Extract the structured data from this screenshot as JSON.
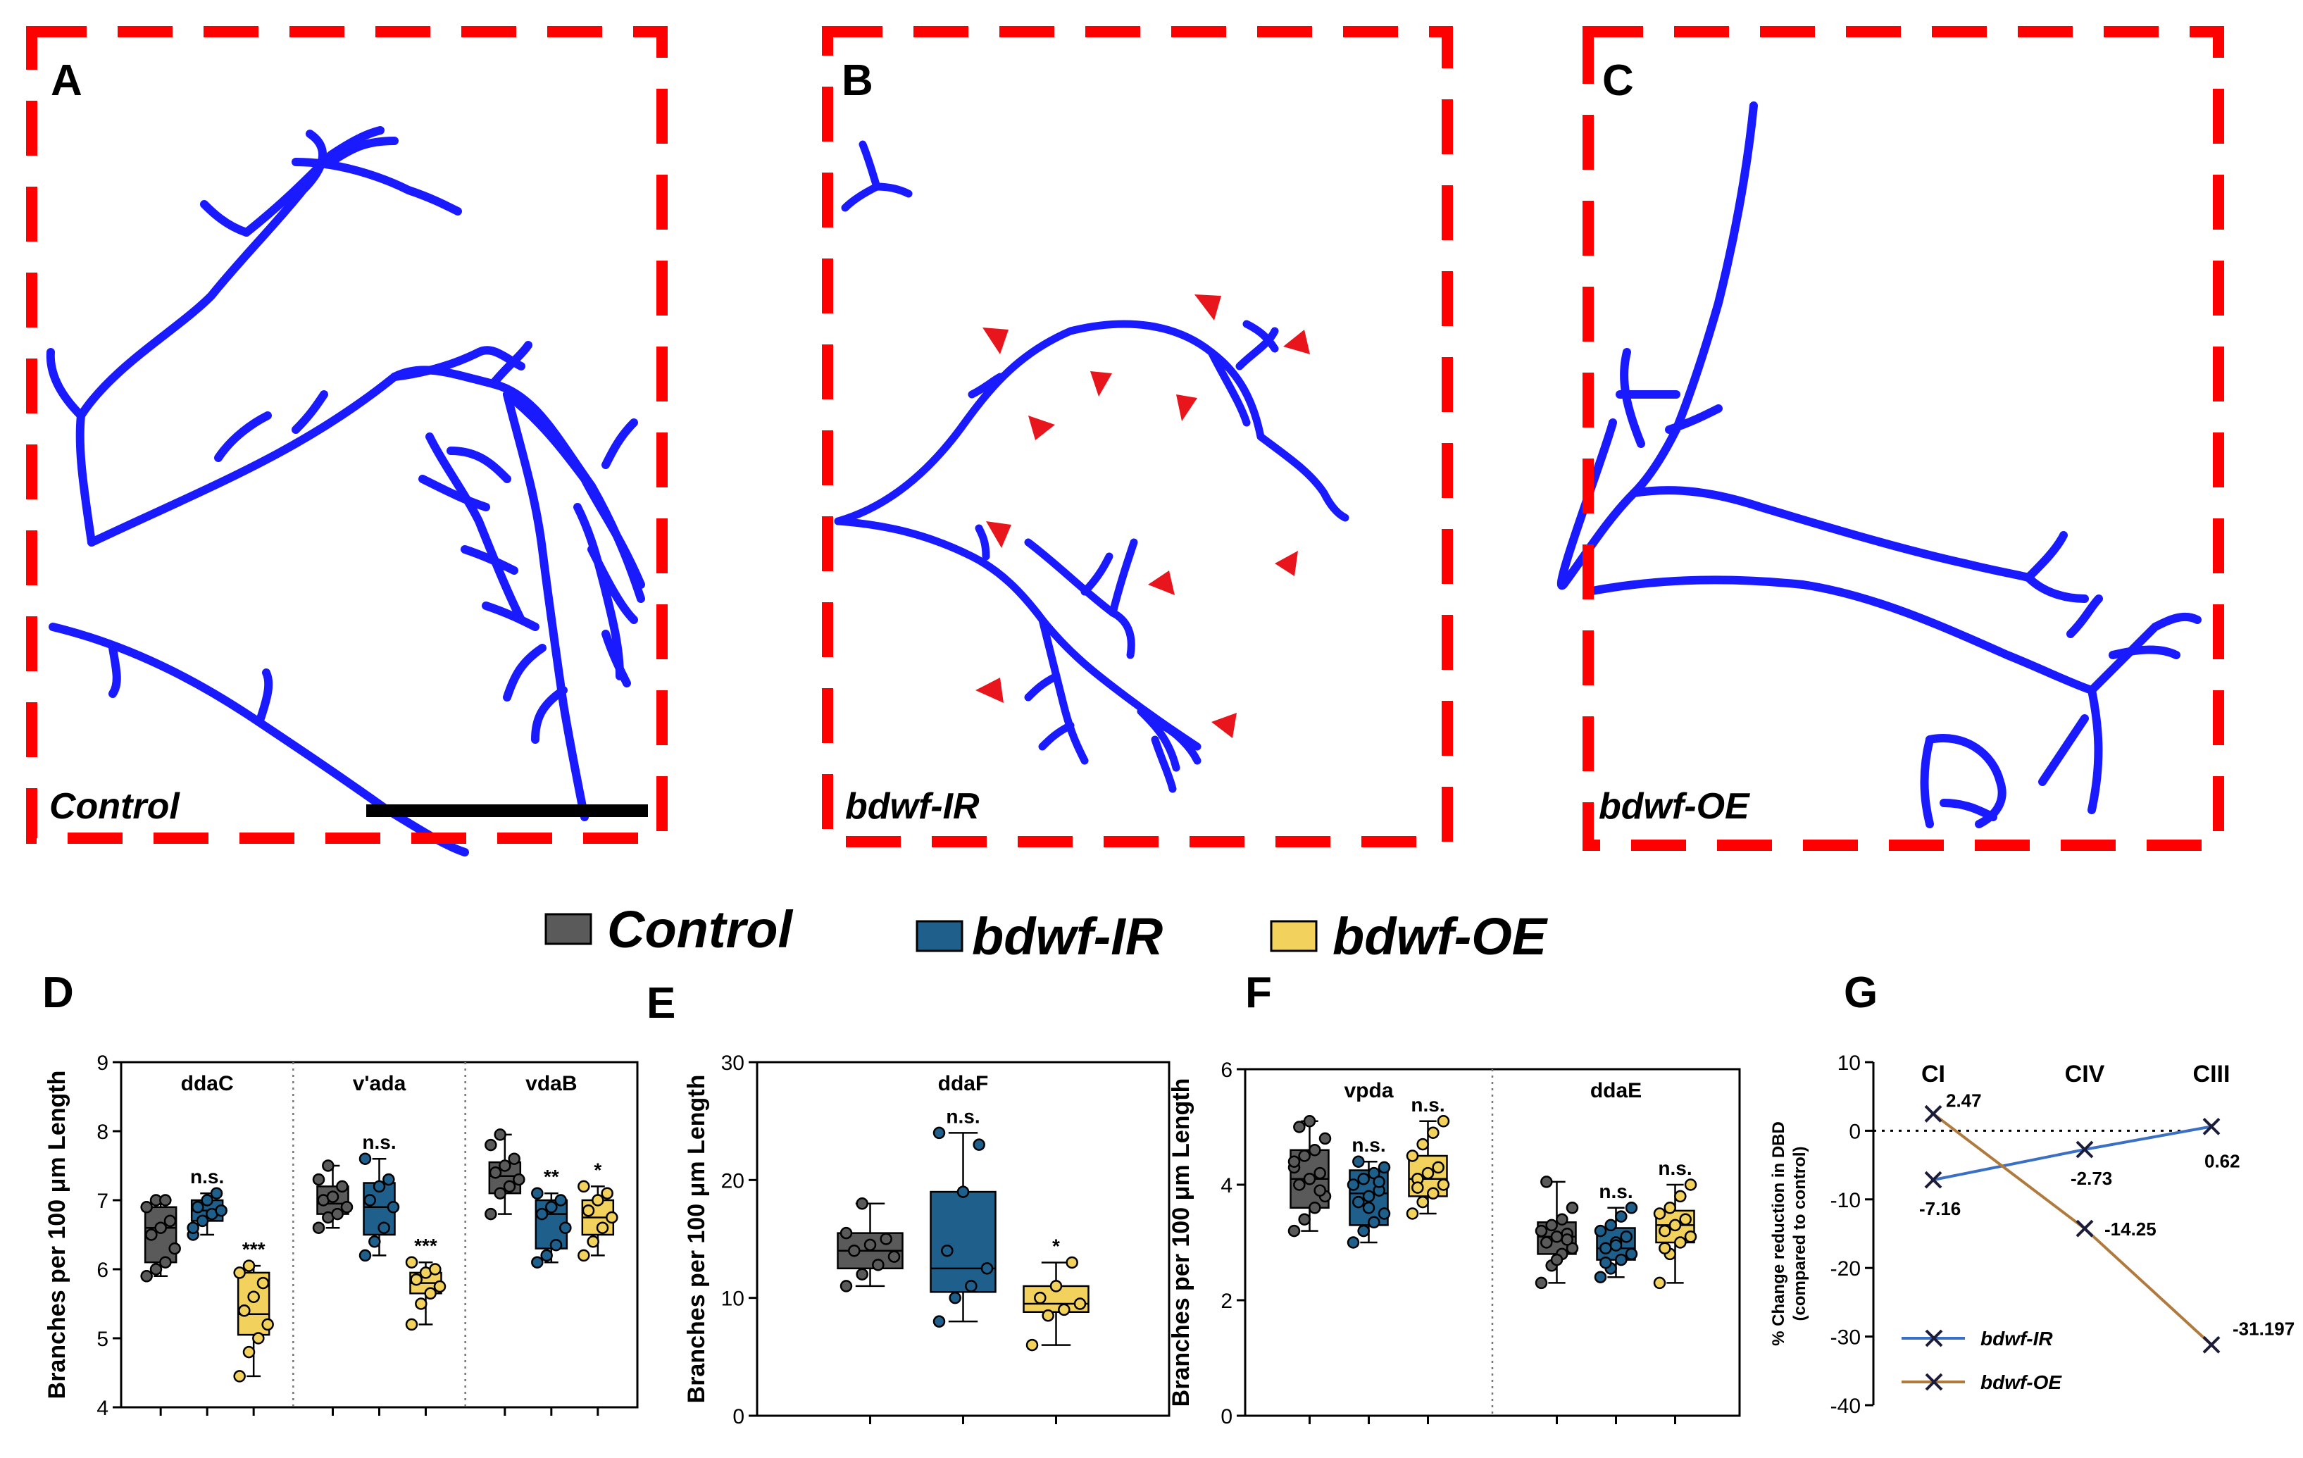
{
  "panels": {
    "A": {
      "label": "A",
      "genotype": "Control"
    },
    "B": {
      "label": "B",
      "genotype": "bdwf-IR"
    },
    "C": {
      "label": "C",
      "genotype": "bdwf-OE"
    }
  },
  "legend": [
    {
      "name": "Control",
      "color": "#5a5a5a"
    },
    {
      "name": "bdwf-IR",
      "color": "#1f5f8b"
    },
    {
      "name": "bdwf-OE",
      "color": "#f2d15c"
    }
  ],
  "colors": {
    "neuron": "#1a1aff",
    "frame": "#ff0000",
    "arrow": "#e8161c",
    "ir_line": "#3a6fc4",
    "oe_line": "#b07a3c"
  },
  "chart_data": [
    {
      "id": "D",
      "label": "D",
      "type": "box",
      "ylabel": "Branches per 100 μm Length",
      "ylim": [
        4,
        9
      ],
      "yticks": [
        "4",
        "5",
        "6",
        "7",
        "8",
        "9"
      ],
      "groups": [
        {
          "name": "ddaC",
          "boxes": [
            {
              "series": "Control",
              "min": 5.9,
              "q1": 6.1,
              "median": 6.6,
              "q3": 6.9,
              "max": 7.0,
              "sig": "",
              "points": [
                5.9,
                6.0,
                6.1,
                6.3,
                6.5,
                6.6,
                6.7,
                6.9,
                7.0,
                7.0
              ]
            },
            {
              "series": "bdwf-IR",
              "min": 6.5,
              "q1": 6.7,
              "median": 6.85,
              "q3": 7.0,
              "max": 7.1,
              "sig": "n.s.",
              "points": [
                6.5,
                6.7,
                6.8,
                6.85,
                6.9,
                7.0,
                7.1,
                6.6
              ]
            },
            {
              "series": "bdwf-OE",
              "min": 4.45,
              "q1": 5.05,
              "median": 5.35,
              "q3": 5.95,
              "max": 6.05,
              "sig": "***",
              "points": [
                4.45,
                4.8,
                5.0,
                5.2,
                5.4,
                5.6,
                5.8,
                5.95,
                6.05
              ]
            }
          ]
        },
        {
          "name": "v'ada",
          "boxes": [
            {
              "series": "Control",
              "min": 6.6,
              "q1": 6.8,
              "median": 6.95,
              "q3": 7.2,
              "max": 7.5,
              "sig": "",
              "points": [
                6.6,
                6.75,
                6.8,
                6.9,
                7.0,
                7.05,
                7.2,
                7.3,
                7.5
              ]
            },
            {
              "series": "bdwf-IR",
              "min": 6.2,
              "q1": 6.5,
              "median": 6.9,
              "q3": 7.25,
              "max": 7.6,
              "sig": "n.s.",
              "points": [
                6.2,
                6.4,
                6.6,
                6.9,
                7.0,
                7.2,
                7.3,
                7.6
              ]
            },
            {
              "series": "bdwf-OE",
              "min": 5.2,
              "q1": 5.65,
              "median": 5.8,
              "q3": 5.95,
              "max": 6.1,
              "sig": "***",
              "points": [
                5.2,
                5.5,
                5.65,
                5.75,
                5.85,
                5.95,
                6.0,
                6.1
              ]
            }
          ]
        },
        {
          "name": "vdaB",
          "boxes": [
            {
              "series": "Control",
              "min": 6.8,
              "q1": 7.1,
              "median": 7.35,
              "q3": 7.55,
              "max": 7.95,
              "sig": "",
              "points": [
                6.8,
                7.1,
                7.2,
                7.3,
                7.4,
                7.5,
                7.6,
                7.8,
                7.95
              ]
            },
            {
              "series": "bdwf-IR",
              "min": 6.1,
              "q1": 6.3,
              "median": 6.8,
              "q3": 7.0,
              "max": 7.1,
              "sig": "**",
              "points": [
                6.1,
                6.2,
                6.35,
                6.6,
                6.8,
                6.9,
                7.0,
                7.1
              ]
            },
            {
              "series": "bdwf-OE",
              "min": 6.2,
              "q1": 6.5,
              "median": 6.75,
              "q3": 7.0,
              "max": 7.2,
              "sig": "*",
              "points": [
                6.2,
                6.4,
                6.6,
                6.75,
                6.85,
                7.0,
                7.1,
                7.2
              ]
            }
          ]
        }
      ]
    },
    {
      "id": "E",
      "label": "E",
      "type": "box",
      "ylabel": "Branches per 100 μm Length",
      "ylim": [
        0,
        30
      ],
      "yticks": [
        "0",
        "10",
        "20",
        "30"
      ],
      "groups": [
        {
          "name": "ddaF",
          "boxes": [
            {
              "series": "Control",
              "min": 11.0,
              "q1": 12.5,
              "median": 14.0,
              "q3": 15.5,
              "max": 18.0,
              "sig": "",
              "points": [
                11.0,
                12.0,
                12.8,
                13.5,
                14.0,
                14.5,
                15.0,
                15.5,
                18.0
              ]
            },
            {
              "series": "bdwf-IR",
              "min": 8.0,
              "q1": 10.5,
              "median": 12.5,
              "q3": 19.0,
              "max": 24.0,
              "sig": "n.s.",
              "points": [
                8.0,
                10.0,
                11.0,
                12.5,
                14.0,
                19.0,
                23.0,
                24.0
              ]
            },
            {
              "series": "bdwf-OE",
              "min": 6.0,
              "q1": 8.8,
              "median": 9.5,
              "q3": 11.0,
              "max": 13.0,
              "sig": "*",
              "points": [
                6.0,
                8.5,
                9.0,
                9.5,
                10.0,
                11.0,
                13.0
              ]
            }
          ]
        }
      ]
    },
    {
      "id": "F",
      "label": "F",
      "type": "box",
      "ylabel": "Branches per 100 μm Length",
      "ylim": [
        0,
        6
      ],
      "yticks": [
        "0",
        "2",
        "4",
        "6"
      ],
      "groups": [
        {
          "name": "vpda",
          "boxes": [
            {
              "series": "Control",
              "min": 3.2,
              "q1": 3.6,
              "median": 4.1,
              "q3": 4.6,
              "max": 5.1,
              "sig": "",
              "points": [
                3.2,
                3.4,
                3.6,
                3.8,
                4.0,
                4.1,
                4.2,
                4.3,
                4.5,
                4.6,
                4.8,
                5.0,
                5.1,
                3.9,
                4.4
              ]
            },
            {
              "series": "bdwf-IR",
              "min": 3.0,
              "q1": 3.3,
              "median": 3.85,
              "q3": 4.25,
              "max": 4.4,
              "sig": "n.s.",
              "points": [
                3.0,
                3.2,
                3.35,
                3.5,
                3.7,
                3.8,
                3.9,
                4.0,
                4.1,
                4.2,
                4.3,
                4.4,
                3.6,
                4.05
              ]
            },
            {
              "series": "bdwf-OE",
              "min": 3.5,
              "q1": 3.8,
              "median": 4.1,
              "q3": 4.5,
              "max": 5.1,
              "sig": "n.s.",
              "points": [
                3.5,
                3.7,
                3.85,
                4.0,
                4.1,
                4.2,
                4.3,
                4.5,
                4.7,
                4.9,
                5.1,
                3.95
              ]
            }
          ]
        },
        {
          "name": "ddaE",
          "boxes": [
            {
              "series": "Control",
              "min": 2.3,
              "q1": 2.8,
              "median": 3.1,
              "q3": 3.35,
              "max": 4.05,
              "sig": "",
              "points": [
                2.3,
                2.6,
                2.8,
                2.9,
                3.0,
                3.1,
                3.15,
                3.2,
                3.3,
                3.4,
                3.6,
                4.05,
                2.7,
                3.05
              ]
            },
            {
              "series": "bdwf-IR",
              "min": 2.4,
              "q1": 2.7,
              "median": 2.9,
              "q3": 3.25,
              "max": 3.6,
              "sig": "n.s.",
              "points": [
                2.4,
                2.55,
                2.7,
                2.8,
                2.9,
                3.0,
                3.1,
                3.2,
                3.3,
                3.45,
                3.6,
                2.65,
                2.95
              ]
            },
            {
              "series": "bdwf-OE",
              "min": 2.3,
              "q1": 3.0,
              "median": 3.3,
              "q3": 3.55,
              "max": 4.0,
              "sig": "n.s.",
              "points": [
                2.3,
                2.8,
                3.0,
                3.1,
                3.2,
                3.3,
                3.4,
                3.5,
                3.6,
                3.8,
                4.0,
                2.9
              ]
            }
          ]
        }
      ]
    },
    {
      "id": "G",
      "label": "G",
      "type": "line",
      "ylabel": "% Change reduction in DBD",
      "ylabel2": "(compared to control)",
      "ylim": [
        -40,
        10
      ],
      "yticks": [
        "10",
        "0",
        "-10",
        "-20",
        "-30",
        "-40"
      ],
      "categories": [
        "CI",
        "CIV",
        "CIII"
      ],
      "series": [
        {
          "name": "bdwf-IR",
          "values": [
            -7.16,
            -2.73,
            0.62
          ],
          "labels": [
            "-7.16",
            "-2.73",
            "0.62"
          ]
        },
        {
          "name": "bdwf-OE",
          "values": [
            2.47,
            -14.25,
            -31.197
          ],
          "labels": [
            "2.47",
            "-14.25",
            "-31.197"
          ]
        }
      ]
    }
  ]
}
